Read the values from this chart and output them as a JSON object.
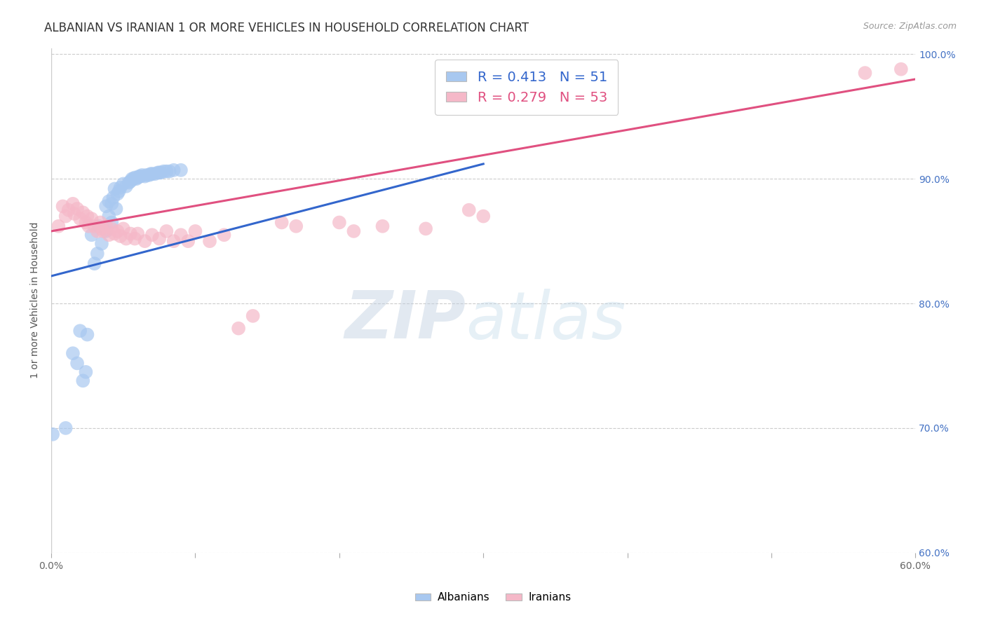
{
  "title": "ALBANIAN VS IRANIAN 1 OR MORE VEHICLES IN HOUSEHOLD CORRELATION CHART",
  "source": "Source: ZipAtlas.com",
  "ylabel": "1 or more Vehicles in Household",
  "xlim": [
    0.0,
    0.6
  ],
  "ylim": [
    0.6,
    1.005
  ],
  "xticks": [
    0.0,
    0.1,
    0.2,
    0.3,
    0.4,
    0.5,
    0.6
  ],
  "xtick_labels": [
    "0.0%",
    "",
    "",
    "",
    "",
    "",
    "60.0%"
  ],
  "ytick_labels_right": [
    "100.0%",
    "90.0%",
    "80.0%",
    "70.0%",
    "60.0%"
  ],
  "ytick_vals_right": [
    1.0,
    0.9,
    0.8,
    0.7,
    0.6
  ],
  "legend_blue_R": "0.413",
  "legend_blue_N": "51",
  "legend_pink_R": "0.279",
  "legend_pink_N": "53",
  "blue_color": "#a8c8f0",
  "pink_color": "#f5b8c8",
  "blue_line_color": "#3366cc",
  "pink_line_color": "#e05080",
  "blue_scatter": [
    [
      0.001,
      0.695
    ],
    [
      0.01,
      0.7
    ],
    [
      0.022,
      0.738
    ],
    [
      0.024,
      0.745
    ],
    [
      0.015,
      0.76
    ],
    [
      0.018,
      0.752
    ],
    [
      0.02,
      0.778
    ],
    [
      0.025,
      0.775
    ],
    [
      0.03,
      0.832
    ],
    [
      0.032,
      0.84
    ],
    [
      0.028,
      0.855
    ],
    [
      0.035,
      0.848
    ],
    [
      0.033,
      0.862
    ],
    [
      0.038,
      0.858
    ],
    [
      0.04,
      0.87
    ],
    [
      0.042,
      0.865
    ],
    [
      0.038,
      0.878
    ],
    [
      0.04,
      0.882
    ],
    [
      0.042,
      0.88
    ],
    [
      0.045,
      0.876
    ],
    [
      0.043,
      0.885
    ],
    [
      0.046,
      0.888
    ],
    [
      0.044,
      0.892
    ],
    [
      0.047,
      0.89
    ],
    [
      0.048,
      0.893
    ],
    [
      0.05,
      0.896
    ],
    [
      0.052,
      0.894
    ],
    [
      0.054,
      0.897
    ],
    [
      0.055,
      0.898
    ],
    [
      0.056,
      0.9
    ],
    [
      0.057,
      0.9
    ],
    [
      0.058,
      0.901
    ],
    [
      0.059,
      0.9
    ],
    [
      0.06,
      0.901
    ],
    [
      0.061,
      0.902
    ],
    [
      0.062,
      0.902
    ],
    [
      0.063,
      0.903
    ],
    [
      0.065,
      0.902
    ],
    [
      0.066,
      0.903
    ],
    [
      0.068,
      0.903
    ],
    [
      0.069,
      0.904
    ],
    [
      0.07,
      0.904
    ],
    [
      0.072,
      0.904
    ],
    [
      0.074,
      0.905
    ],
    [
      0.075,
      0.905
    ],
    [
      0.076,
      0.905
    ],
    [
      0.078,
      0.906
    ],
    [
      0.08,
      0.906
    ],
    [
      0.082,
      0.906
    ],
    [
      0.085,
      0.907
    ],
    [
      0.09,
      0.907
    ]
  ],
  "pink_scatter": [
    [
      0.005,
      0.862
    ],
    [
      0.008,
      0.878
    ],
    [
      0.01,
      0.87
    ],
    [
      0.012,
      0.875
    ],
    [
      0.015,
      0.88
    ],
    [
      0.016,
      0.872
    ],
    [
      0.018,
      0.876
    ],
    [
      0.02,
      0.868
    ],
    [
      0.022,
      0.873
    ],
    [
      0.024,
      0.865
    ],
    [
      0.025,
      0.87
    ],
    [
      0.026,
      0.862
    ],
    [
      0.028,
      0.868
    ],
    [
      0.03,
      0.862
    ],
    [
      0.032,
      0.858
    ],
    [
      0.034,
      0.865
    ],
    [
      0.035,
      0.86
    ],
    [
      0.036,
      0.858
    ],
    [
      0.038,
      0.862
    ],
    [
      0.04,
      0.855
    ],
    [
      0.042,
      0.86
    ],
    [
      0.044,
      0.856
    ],
    [
      0.046,
      0.858
    ],
    [
      0.048,
      0.854
    ],
    [
      0.05,
      0.86
    ],
    [
      0.052,
      0.852
    ],
    [
      0.055,
      0.856
    ],
    [
      0.058,
      0.852
    ],
    [
      0.06,
      0.856
    ],
    [
      0.065,
      0.85
    ],
    [
      0.07,
      0.855
    ],
    [
      0.075,
      0.852
    ],
    [
      0.08,
      0.858
    ],
    [
      0.085,
      0.85
    ],
    [
      0.09,
      0.855
    ],
    [
      0.095,
      0.85
    ],
    [
      0.1,
      0.858
    ],
    [
      0.11,
      0.85
    ],
    [
      0.12,
      0.855
    ],
    [
      0.13,
      0.78
    ],
    [
      0.14,
      0.79
    ],
    [
      0.16,
      0.865
    ],
    [
      0.17,
      0.862
    ],
    [
      0.2,
      0.865
    ],
    [
      0.21,
      0.858
    ],
    [
      0.23,
      0.862
    ],
    [
      0.26,
      0.86
    ],
    [
      0.29,
      0.875
    ],
    [
      0.3,
      0.87
    ],
    [
      0.35,
      0.96
    ],
    [
      0.385,
      0.97
    ],
    [
      0.565,
      0.985
    ],
    [
      0.59,
      0.988
    ]
  ],
  "blue_trendline": [
    [
      0.0,
      0.822
    ],
    [
      0.3,
      0.912
    ]
  ],
  "pink_trendline": [
    [
      0.0,
      0.858
    ],
    [
      0.6,
      0.98
    ]
  ],
  "watermark_zip": "ZIP",
  "watermark_atlas": "atlas",
  "background_color": "#ffffff",
  "grid_color": "#cccccc",
  "title_fontsize": 12,
  "axis_label_fontsize": 10,
  "tick_fontsize": 10,
  "legend_fontsize": 14
}
